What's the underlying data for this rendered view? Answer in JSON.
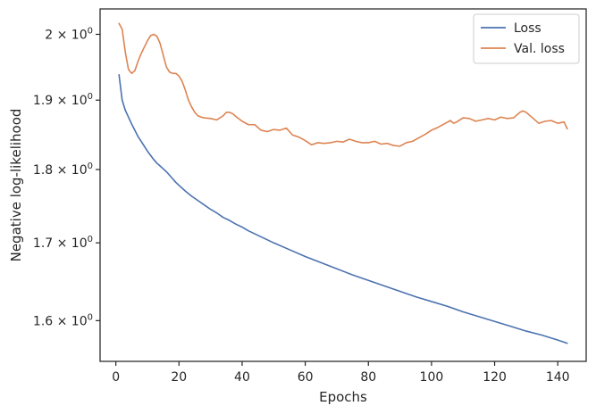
{
  "chart_data": {
    "type": "line",
    "xlabel": "Epochs",
    "ylabel": "Negative log-likelihood",
    "x_scale": "linear",
    "y_scale": "log",
    "xlim": [
      -5,
      149
    ],
    "ylim": [
      1.55,
      2.04
    ],
    "grid": false,
    "legend_position": "top-right",
    "x_ticks": [
      {
        "value": 0,
        "label": "0"
      },
      {
        "value": 20,
        "label": "20"
      },
      {
        "value": 40,
        "label": "40"
      },
      {
        "value": 60,
        "label": "60"
      },
      {
        "value": 80,
        "label": "80"
      },
      {
        "value": 100,
        "label": "100"
      },
      {
        "value": 120,
        "label": "120"
      },
      {
        "value": 140,
        "label": "140"
      }
    ],
    "y_ticks": [
      {
        "value": 1.6,
        "base": "1.6",
        "exp": "0"
      },
      {
        "value": 1.7,
        "base": "1.7",
        "exp": "0"
      },
      {
        "value": 1.8,
        "base": "1.8",
        "exp": "0"
      },
      {
        "value": 1.9,
        "base": "1.9",
        "exp": "0"
      },
      {
        "value": 2.0,
        "base": "2",
        "exp": "0"
      }
    ],
    "y_tick_times": "×",
    "y_tick_power_base": "10",
    "series": [
      {
        "name": "Loss",
        "color": "#4c72b0",
        "points": [
          [
            1,
            1.938
          ],
          [
            2,
            1.9
          ],
          [
            3,
            1.885
          ],
          [
            4,
            1.875
          ],
          [
            5,
            1.865
          ],
          [
            6,
            1.856
          ],
          [
            7,
            1.847
          ],
          [
            8,
            1.84
          ],
          [
            9,
            1.833
          ],
          [
            10,
            1.826
          ],
          [
            11,
            1.82
          ],
          [
            12,
            1.814
          ],
          [
            13,
            1.809
          ],
          [
            14,
            1.805
          ],
          [
            15,
            1.801
          ],
          [
            16,
            1.797
          ],
          [
            17,
            1.792
          ],
          [
            18,
            1.787
          ],
          [
            19,
            1.782
          ],
          [
            20,
            1.778
          ],
          [
            22,
            1.77
          ],
          [
            24,
            1.763
          ],
          [
            26,
            1.757
          ],
          [
            28,
            1.751
          ],
          [
            30,
            1.745
          ],
          [
            32,
            1.74
          ],
          [
            34,
            1.734
          ],
          [
            36,
            1.73
          ],
          [
            38,
            1.725
          ],
          [
            40,
            1.721
          ],
          [
            42,
            1.716
          ],
          [
            44,
            1.712
          ],
          [
            46,
            1.708
          ],
          [
            48,
            1.704
          ],
          [
            50,
            1.7
          ],
          [
            55,
            1.691
          ],
          [
            60,
            1.682
          ],
          [
            65,
            1.674
          ],
          [
            70,
            1.666
          ],
          [
            75,
            1.658
          ],
          [
            80,
            1.651
          ],
          [
            85,
            1.644
          ],
          [
            90,
            1.637
          ],
          [
            95,
            1.63
          ],
          [
            100,
            1.624
          ],
          [
            105,
            1.618
          ],
          [
            110,
            1.611
          ],
          [
            115,
            1.605
          ],
          [
            120,
            1.599
          ],
          [
            125,
            1.593
          ],
          [
            130,
            1.587
          ],
          [
            135,
            1.582
          ],
          [
            140,
            1.576
          ],
          [
            143,
            1.572
          ]
        ]
      },
      {
        "name": "Val. loss",
        "color": "#dd8452",
        "points": [
          [
            1,
            2.017
          ],
          [
            2,
            2.008
          ],
          [
            3,
            1.972
          ],
          [
            4,
            1.946
          ],
          [
            5,
            1.94
          ],
          [
            6,
            1.944
          ],
          [
            7,
            1.958
          ],
          [
            8,
            1.97
          ],
          [
            9,
            1.98
          ],
          [
            10,
            1.99
          ],
          [
            11,
            1.998
          ],
          [
            12,
            2.0
          ],
          [
            13,
            1.997
          ],
          [
            14,
            1.986
          ],
          [
            15,
            1.968
          ],
          [
            16,
            1.95
          ],
          [
            17,
            1.942
          ],
          [
            18,
            1.94
          ],
          [
            19,
            1.94
          ],
          [
            20,
            1.936
          ],
          [
            21,
            1.928
          ],
          [
            22,
            1.915
          ],
          [
            23,
            1.9
          ],
          [
            24,
            1.89
          ],
          [
            25,
            1.882
          ],
          [
            26,
            1.877
          ],
          [
            27,
            1.875
          ],
          [
            28,
            1.874
          ],
          [
            30,
            1.873
          ],
          [
            32,
            1.871
          ],
          [
            34,
            1.877
          ],
          [
            35,
            1.882
          ],
          [
            36,
            1.882
          ],
          [
            37,
            1.88
          ],
          [
            38,
            1.876
          ],
          [
            40,
            1.869
          ],
          [
            42,
            1.864
          ],
          [
            44,
            1.864
          ],
          [
            46,
            1.856
          ],
          [
            48,
            1.854
          ],
          [
            50,
            1.857
          ],
          [
            52,
            1.856
          ],
          [
            54,
            1.859
          ],
          [
            56,
            1.849
          ],
          [
            58,
            1.846
          ],
          [
            60,
            1.841
          ],
          [
            62,
            1.835
          ],
          [
            64,
            1.838
          ],
          [
            66,
            1.837
          ],
          [
            68,
            1.838
          ],
          [
            70,
            1.84
          ],
          [
            72,
            1.839
          ],
          [
            74,
            1.843
          ],
          [
            76,
            1.84
          ],
          [
            78,
            1.838
          ],
          [
            80,
            1.838
          ],
          [
            82,
            1.84
          ],
          [
            84,
            1.836
          ],
          [
            86,
            1.837
          ],
          [
            88,
            1.834
          ],
          [
            90,
            1.833
          ],
          [
            92,
            1.838
          ],
          [
            94,
            1.84
          ],
          [
            96,
            1.845
          ],
          [
            98,
            1.85
          ],
          [
            100,
            1.856
          ],
          [
            102,
            1.86
          ],
          [
            104,
            1.865
          ],
          [
            106,
            1.87
          ],
          [
            107,
            1.866
          ],
          [
            108,
            1.868
          ],
          [
            110,
            1.874
          ],
          [
            112,
            1.873
          ],
          [
            114,
            1.869
          ],
          [
            116,
            1.871
          ],
          [
            118,
            1.873
          ],
          [
            120,
            1.871
          ],
          [
            122,
            1.875
          ],
          [
            124,
            1.873
          ],
          [
            126,
            1.874
          ],
          [
            128,
            1.882
          ],
          [
            129,
            1.884
          ],
          [
            130,
            1.882
          ],
          [
            132,
            1.874
          ],
          [
            134,
            1.866
          ],
          [
            136,
            1.869
          ],
          [
            138,
            1.87
          ],
          [
            140,
            1.866
          ],
          [
            142,
            1.868
          ],
          [
            143,
            1.858
          ]
        ]
      }
    ]
  }
}
